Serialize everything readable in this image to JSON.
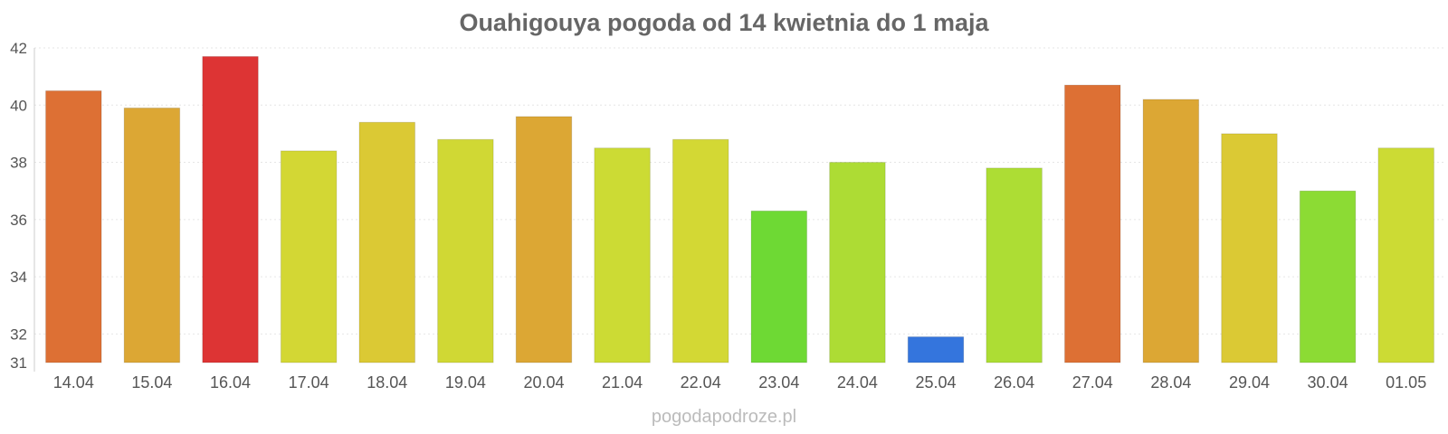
{
  "chart_data": {
    "type": "bar",
    "title": "Ouahigouya pogoda od 14 kwietnia do 1 maja",
    "xlabel": "",
    "ylabel": "",
    "categories": [
      "14.04",
      "15.04",
      "16.04",
      "17.04",
      "18.04",
      "19.04",
      "20.04",
      "21.04",
      "22.04",
      "23.04",
      "24.04",
      "25.04",
      "26.04",
      "27.04",
      "28.04",
      "29.04",
      "30.04",
      "01.05"
    ],
    "values": [
      40.5,
      39.9,
      41.7,
      38.4,
      39.4,
      38.8,
      39.6,
      38.5,
      38.8,
      36.3,
      38.0,
      31.9,
      37.8,
      40.7,
      40.2,
      39.0,
      37.0,
      38.5
    ],
    "colors": [
      "#dd7034",
      "#dca734",
      "#dd3434",
      "#d3d734",
      "#dbc934",
      "#d0d834",
      "#dca734",
      "#ccdb34",
      "#d3d834",
      "#6ed934",
      "#addc34",
      "#3475dd",
      "#addd34",
      "#dd7034",
      "#dca734",
      "#dbc934",
      "#8cdb34",
      "#ccdb34"
    ],
    "ylim": [
      31,
      42
    ],
    "yticks": [
      31,
      32,
      34,
      36,
      38,
      40,
      42
    ],
    "grid": true,
    "legend": "none"
  },
  "watermark": "pogodapodroze.pl"
}
